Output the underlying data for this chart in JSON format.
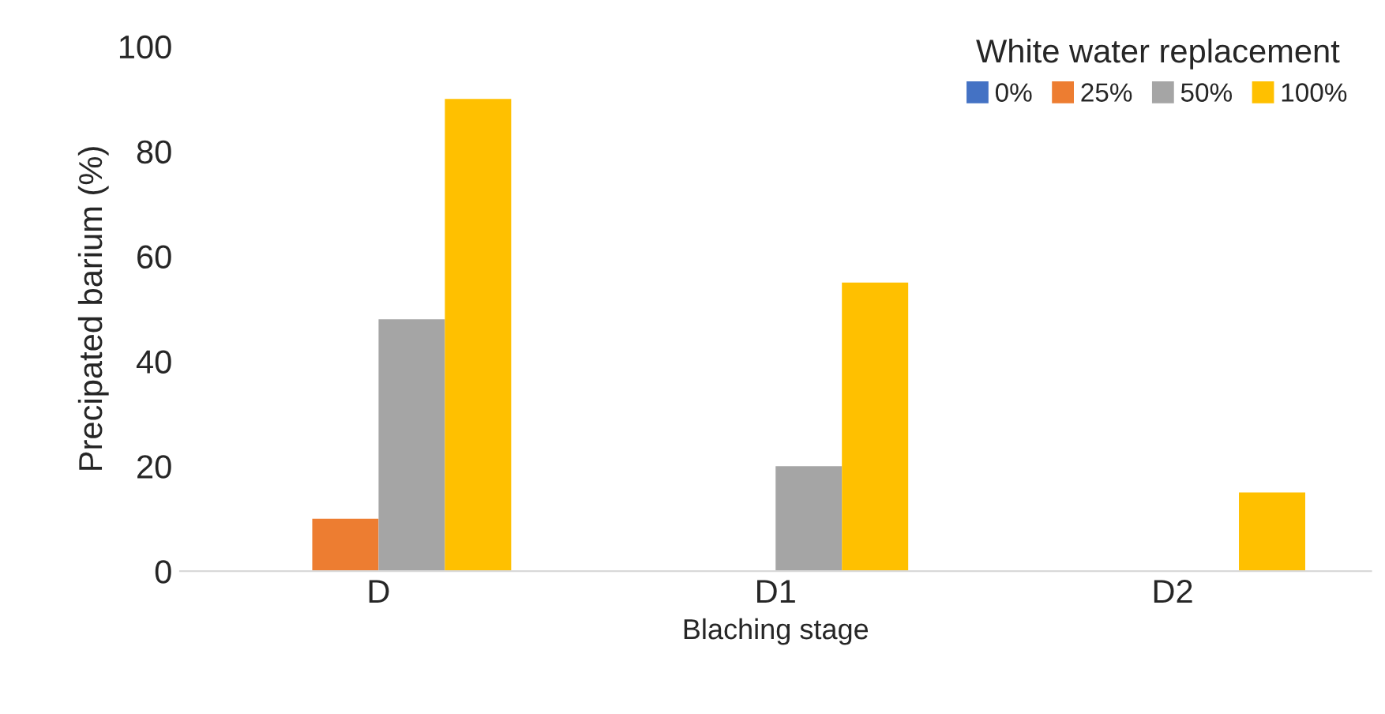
{
  "chart_data": {
    "type": "bar",
    "xlabel": "Blaching stage",
    "ylabel": "Precipated barium (%)",
    "legend_title": "White water replacement",
    "categories": [
      "D",
      "D1",
      "D2"
    ],
    "series": [
      {
        "name": "0%",
        "color": "#4472c4",
        "values": [
          0,
          0,
          0
        ]
      },
      {
        "name": "25%",
        "color": "#ed7d31",
        "values": [
          10,
          0,
          0
        ]
      },
      {
        "name": "50%",
        "color": "#a5a5a5",
        "values": [
          48,
          20,
          0
        ]
      },
      {
        "name": "100%",
        "color": "#ffc000",
        "values": [
          90,
          55,
          15
        ]
      }
    ],
    "ylim": [
      0,
      100
    ],
    "yticks": [
      0,
      20,
      40,
      60,
      80,
      100
    ],
    "grid": false,
    "legend": "top right"
  }
}
